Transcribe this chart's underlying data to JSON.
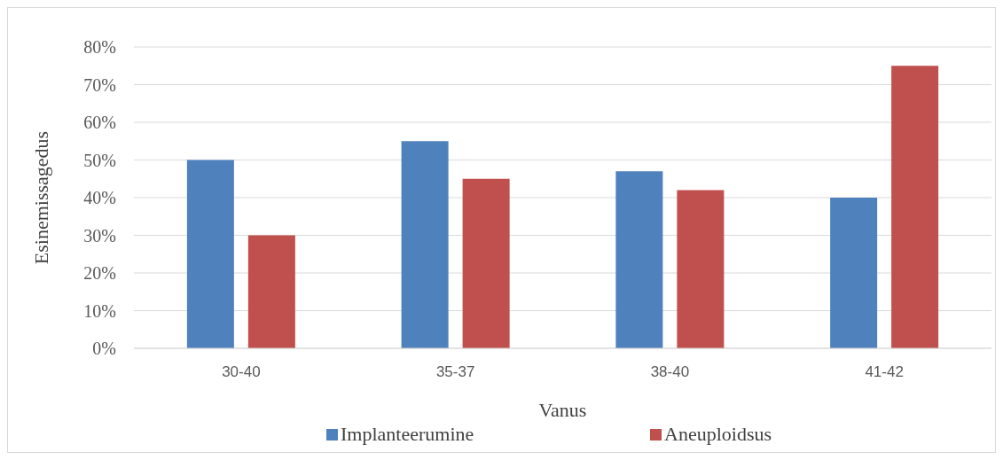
{
  "chart_data": {
    "type": "bar",
    "xlabel": "Vanus",
    "ylabel": "Esinemissagedus",
    "categories": [
      "30-40",
      "35-37",
      "38-40",
      "41-42"
    ],
    "series": [
      {
        "name": "Implanteerumine",
        "color": "#4f81bd",
        "values": [
          50,
          55,
          47,
          40
        ]
      },
      {
        "name": "Aneuploidsus",
        "color": "#c0504d",
        "values": [
          30,
          45,
          42,
          75
        ]
      }
    ],
    "ylim": [
      0,
      80
    ],
    "yticks": [
      {
        "value": 0,
        "label": "0%"
      },
      {
        "value": 10,
        "label": "10%"
      },
      {
        "value": 20,
        "label": "20%"
      },
      {
        "value": 30,
        "label": "30%"
      },
      {
        "value": 40,
        "label": "40%"
      },
      {
        "value": 50,
        "label": "50%"
      },
      {
        "value": 60,
        "label": "60%"
      },
      {
        "value": 70,
        "label": "70%"
      },
      {
        "value": 80,
        "label": "80%"
      }
    ],
    "grid": "y",
    "legend": "bottom"
  }
}
